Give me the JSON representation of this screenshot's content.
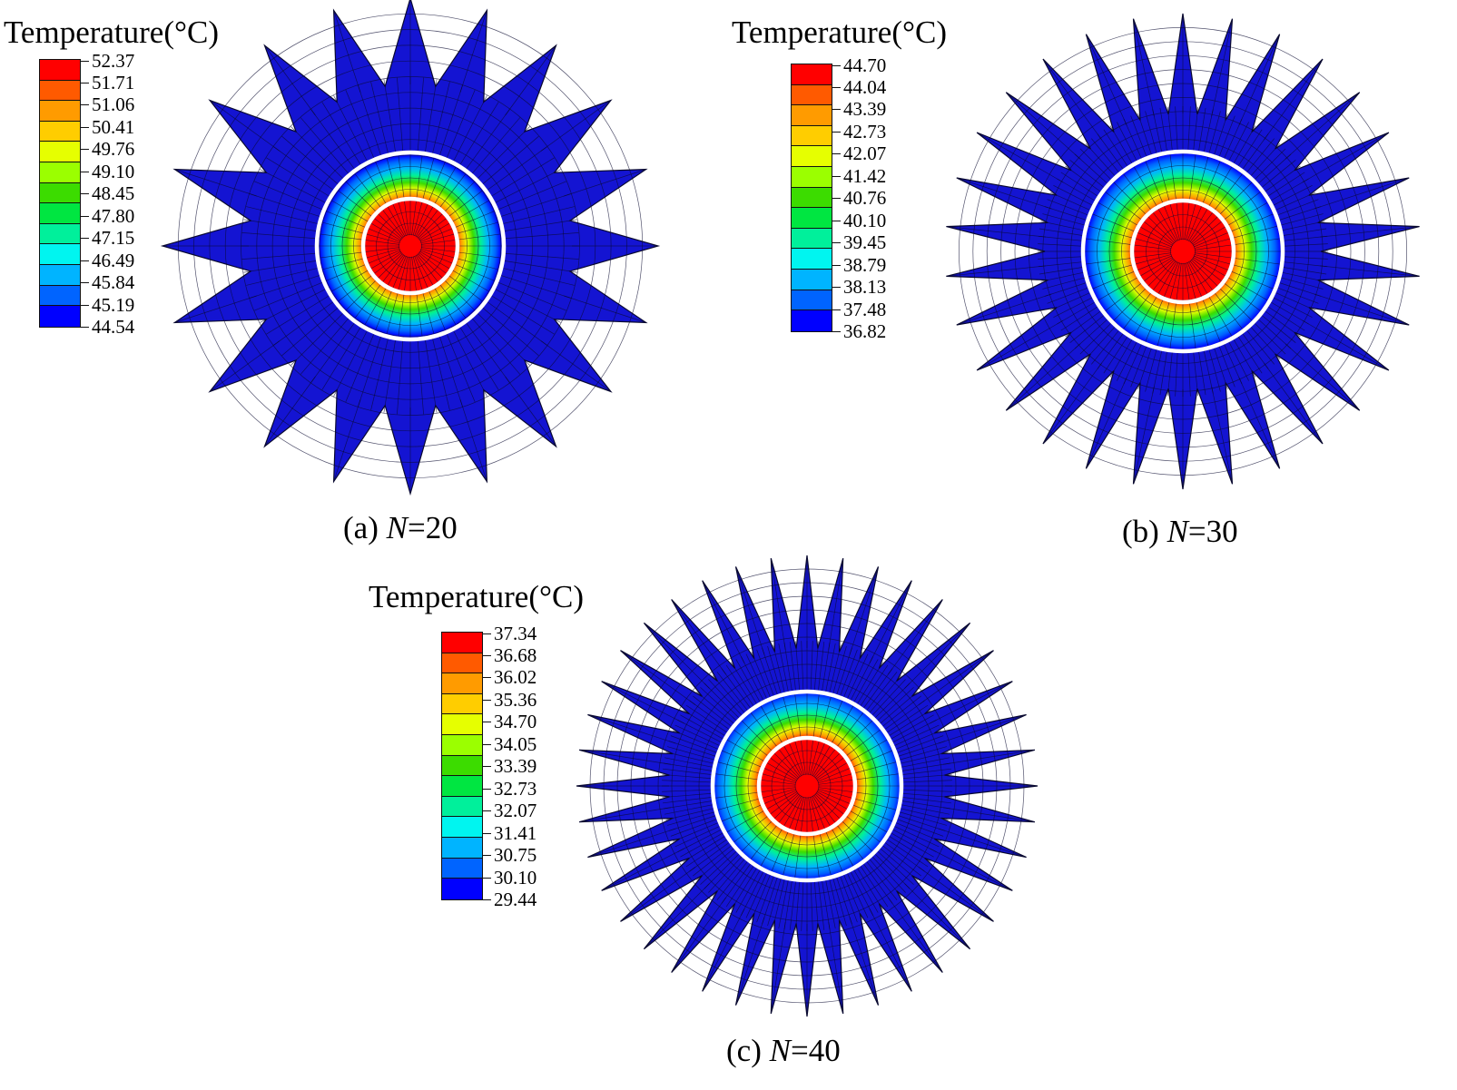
{
  "colors": {
    "fin_blue": "#1414d2",
    "mesh_line": "#0a0a30",
    "ring_white": "#ffffff",
    "palette": [
      "#ff0000",
      "#ff5a00",
      "#ff9b00",
      "#ffcd00",
      "#e6ff00",
      "#9bff00",
      "#3cdc00",
      "#00e641",
      "#00f09b",
      "#00f5f0",
      "#00b4ff",
      "#0064ff",
      "#0000ff"
    ]
  },
  "panels": [
    {
      "id": "a",
      "legend_title": "Temperature(°C)",
      "legend_values": [
        "52.37",
        "51.71",
        "51.06",
        "50.41",
        "49.76",
        "49.10",
        "48.45",
        "47.80",
        "47.15",
        "46.49",
        "45.84",
        "45.19",
        "44.54"
      ],
      "fin_count": 20,
      "caption_prefix": "(a) ",
      "caption_var": "N",
      "caption_suffix": "=20"
    },
    {
      "id": "b",
      "legend_title": "Temperature(°C)",
      "legend_values": [
        "44.70",
        "44.04",
        "43.39",
        "42.73",
        "42.07",
        "41.42",
        "40.76",
        "40.10",
        "39.45",
        "38.79",
        "38.13",
        "37.48",
        "36.82"
      ],
      "fin_count": 30,
      "caption_prefix": "(b) ",
      "caption_var": "N",
      "caption_suffix": "=30"
    },
    {
      "id": "c",
      "legend_title": "Temperature(°C)",
      "legend_values": [
        "37.34",
        "36.68",
        "36.02",
        "35.36",
        "34.70",
        "34.05",
        "33.39",
        "32.73",
        "32.07",
        "31.41",
        "30.75",
        "30.10",
        "29.44"
      ],
      "fin_count": 40,
      "caption_prefix": "(c) ",
      "caption_var": "N",
      "caption_suffix": "=40"
    }
  ]
}
